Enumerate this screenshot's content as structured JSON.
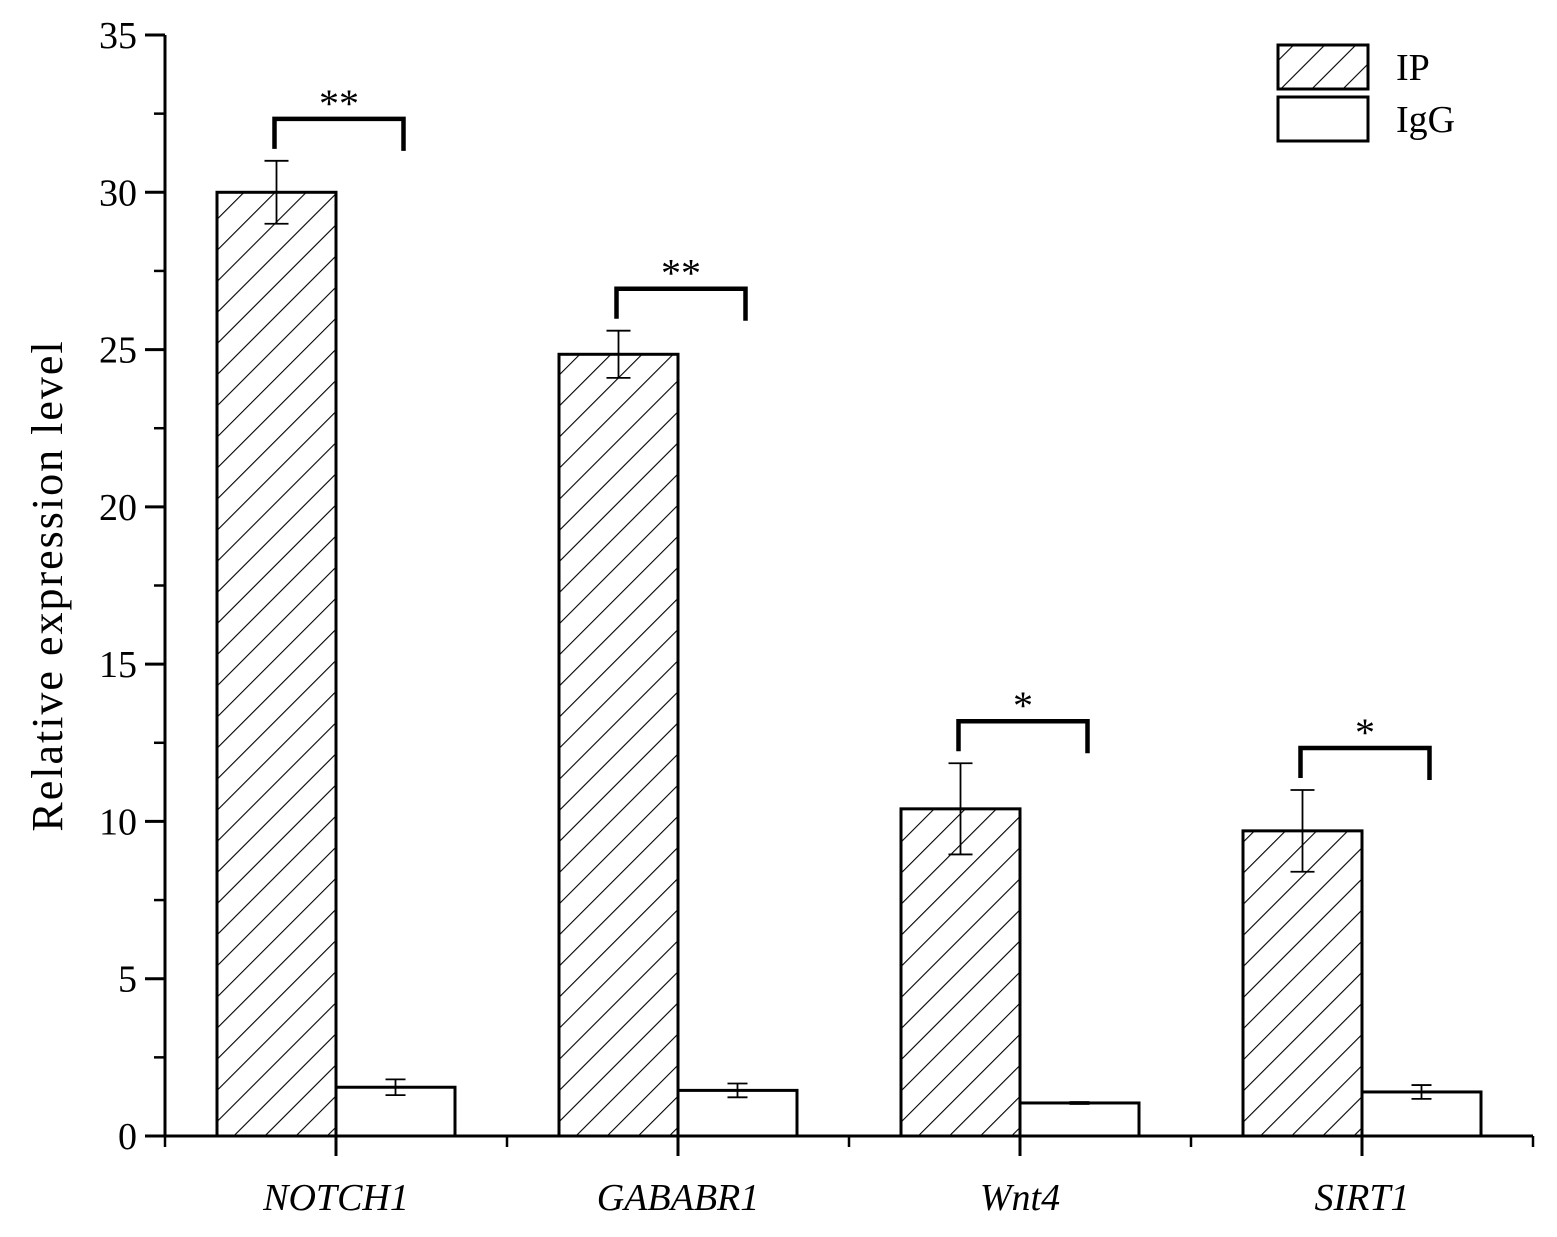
{
  "chart_data": {
    "type": "bar",
    "title": "",
    "xlabel": "",
    "ylabel": "Relative expression level",
    "ylim": [
      0,
      35
    ],
    "yticks": [
      0,
      5,
      10,
      15,
      20,
      25,
      30,
      35
    ],
    "categories": [
      "NOTCH1",
      "GABABR1",
      "Wnt4",
      "SIRT1"
    ],
    "series": [
      {
        "name": "IP",
        "values": [
          30.0,
          24.85,
          10.4,
          9.7
        ],
        "errors": [
          1.0,
          0.75,
          1.45,
          1.3
        ],
        "fill": "hatched"
      },
      {
        "name": "IgG",
        "values": [
          1.55,
          1.45,
          1.05,
          1.4
        ],
        "errors": [
          0.25,
          0.22,
          0.03,
          0.22
        ],
        "fill": "white"
      }
    ],
    "significance": [
      "**",
      "**",
      "*",
      "*"
    ],
    "legend": {
      "position": "top-right",
      "entries": [
        "IP",
        "IgG"
      ]
    },
    "grid": false,
    "colors": {
      "stroke": "#000000",
      "background": "#ffffff"
    }
  }
}
